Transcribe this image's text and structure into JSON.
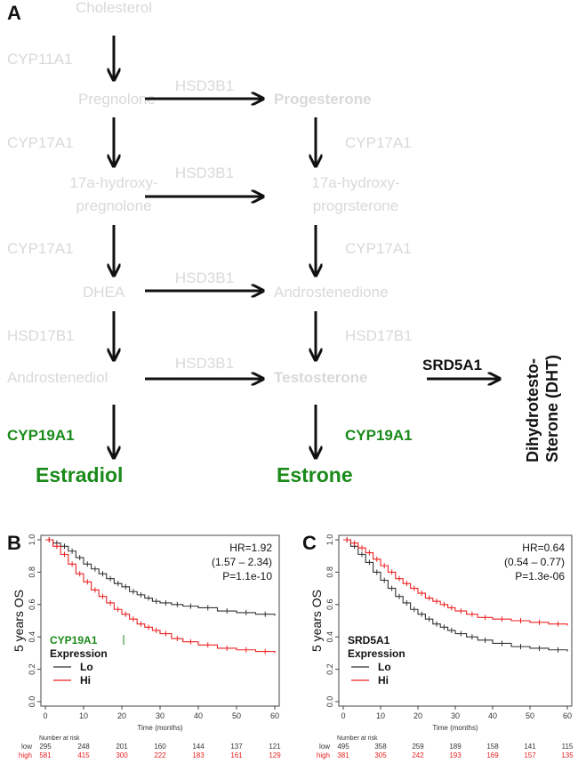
{
  "panel_labels": {
    "a": "A",
    "b": "B",
    "c": "C"
  },
  "colors": {
    "faded": "#d9d9d9",
    "green": "#1a8a1a",
    "red": "#ee2222",
    "black": "#111111",
    "risk_red": "#e82020"
  },
  "pathway": {
    "col1": {
      "cholesterol": "Cholesterol",
      "enz1": "CYP11A1",
      "pregnolone": "Pregnolone",
      "enz2": "CYP17A1",
      "hydroxy_line1": "17a-hydroxy-",
      "hydroxy_line2": "pregnolone",
      "enz3": "CYP17A1",
      "dhea": "DHEA",
      "enz4": "HSD17B1",
      "androstenediol": "Androstenediol",
      "enz5": "CYP19A1",
      "estradiol": "Estradiol"
    },
    "horizontal": {
      "h1": "HSD3B1",
      "h2": "HSD3B1",
      "h3": "HSD3B1",
      "h4": "HSD3B1"
    },
    "col2": {
      "progesterone": "Progesterone",
      "enz2": "CYP17A1",
      "hydroxy_line1": "17a-hydroxy-",
      "hydroxy_line2": "progrsterone",
      "enz3": "CYP17A1",
      "androstenedione": "Androstenedione",
      "enz4": "HSD17B1",
      "testosterone": "Testosterone",
      "enz5": "CYP19A1",
      "estrone": "Estrone"
    },
    "dht": {
      "enzyme": "SRD5A1",
      "line1": "Dihydrotesto-",
      "line2": "Sterone (DHT)"
    }
  },
  "chart_data": [
    {
      "type": "line",
      "panel": "B",
      "ylabel": "5 years OS",
      "xlabel": "Time (months)",
      "xlim": [
        0,
        60
      ],
      "ylim": [
        0,
        1
      ],
      "x_ticks": [
        "0",
        "10",
        "20",
        "30",
        "40",
        "50",
        "60"
      ],
      "y_ticks": [
        "0.0",
        "0.2",
        "0.4",
        "0.6",
        "0.8",
        "1.0"
      ],
      "stats": {
        "hr": "HR=1.92",
        "ci": "(1.57 – 2.34)",
        "p": "P=1.1e-10"
      },
      "legend": {
        "gene": "CYP19A1",
        "title": "Expression",
        "lo": "Lo",
        "hi": "Hi"
      },
      "series": [
        {
          "name": "Lo",
          "color": "#333333",
          "x": [
            0,
            2,
            4,
            6,
            8,
            10,
            12,
            14,
            16,
            18,
            20,
            22,
            24,
            26,
            28,
            30,
            33,
            36,
            40,
            45,
            50,
            55,
            60
          ],
          "y": [
            1.0,
            0.98,
            0.96,
            0.93,
            0.89,
            0.85,
            0.82,
            0.79,
            0.76,
            0.73,
            0.71,
            0.68,
            0.66,
            0.64,
            0.62,
            0.61,
            0.6,
            0.59,
            0.58,
            0.56,
            0.55,
            0.54,
            0.53
          ]
        },
        {
          "name": "Hi",
          "color": "#ee2222",
          "x": [
            0,
            2,
            4,
            6,
            8,
            10,
            12,
            14,
            16,
            18,
            20,
            22,
            24,
            26,
            28,
            30,
            33,
            36,
            40,
            45,
            50,
            55,
            60
          ],
          "y": [
            1.0,
            0.96,
            0.91,
            0.85,
            0.79,
            0.74,
            0.69,
            0.65,
            0.61,
            0.57,
            0.54,
            0.51,
            0.48,
            0.46,
            0.44,
            0.42,
            0.39,
            0.37,
            0.35,
            0.33,
            0.32,
            0.31,
            0.3
          ]
        }
      ],
      "risk": {
        "title": "Number at risk",
        "rows": [
          {
            "label": "low",
            "values": [
              "295",
              "248",
              "201",
              "160",
              "144",
              "137",
              "121"
            ]
          },
          {
            "label": "high",
            "values": [
              "581",
              "415",
              "300",
              "222",
              "183",
              "161",
              "129"
            ]
          }
        ]
      }
    },
    {
      "type": "line",
      "panel": "C",
      "ylabel": "5 years OS",
      "xlabel": "Time (months)",
      "xlim": [
        0,
        60
      ],
      "ylim": [
        0,
        1
      ],
      "x_ticks": [
        "0",
        "10",
        "20",
        "30",
        "40",
        "50",
        "60"
      ],
      "y_ticks": [
        "0.0",
        "0.2",
        "0.4",
        "0.6",
        "0.8",
        "1.0"
      ],
      "stats": {
        "hr": "HR=0.64",
        "ci": "(0.54 – 0.77)",
        "p": "P=1.3e-06"
      },
      "legend": {
        "gene": "SRD5A1",
        "title": "Expression",
        "lo": "Lo",
        "hi": "Hi"
      },
      "series": [
        {
          "name": "Lo",
          "color": "#333333",
          "x": [
            0,
            2,
            4,
            6,
            8,
            10,
            12,
            14,
            16,
            18,
            20,
            22,
            24,
            26,
            28,
            30,
            33,
            36,
            40,
            45,
            50,
            55,
            60
          ],
          "y": [
            1.0,
            0.96,
            0.91,
            0.86,
            0.8,
            0.75,
            0.7,
            0.65,
            0.61,
            0.57,
            0.54,
            0.51,
            0.48,
            0.46,
            0.44,
            0.42,
            0.4,
            0.38,
            0.36,
            0.34,
            0.33,
            0.32,
            0.31
          ]
        },
        {
          "name": "Hi",
          "color": "#ee2222",
          "x": [
            0,
            2,
            4,
            6,
            8,
            10,
            12,
            14,
            16,
            18,
            20,
            22,
            24,
            26,
            28,
            30,
            33,
            36,
            40,
            45,
            50,
            55,
            60
          ],
          "y": [
            1.0,
            0.98,
            0.95,
            0.92,
            0.88,
            0.84,
            0.8,
            0.76,
            0.73,
            0.7,
            0.67,
            0.64,
            0.62,
            0.6,
            0.58,
            0.56,
            0.54,
            0.52,
            0.51,
            0.5,
            0.49,
            0.48,
            0.47
          ]
        }
      ],
      "risk": {
        "title": "Number at risk",
        "rows": [
          {
            "label": "low",
            "values": [
              "495",
              "358",
              "259",
              "189",
              "158",
              "141",
              "115"
            ]
          },
          {
            "label": "high",
            "values": [
              "381",
              "305",
              "242",
              "193",
              "169",
              "157",
              "135"
            ]
          }
        ]
      }
    }
  ]
}
